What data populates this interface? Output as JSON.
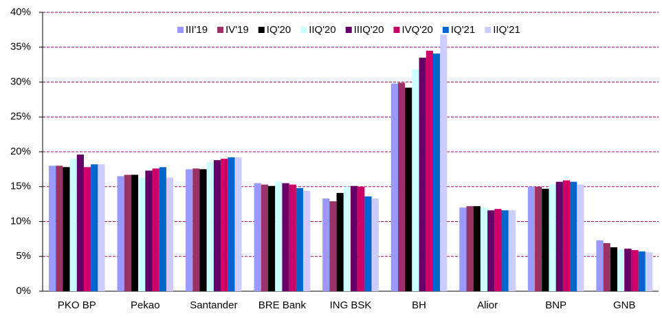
{
  "chart_data": {
    "type": "bar",
    "categories": [
      "PKO BP",
      "Pekao",
      "Santander",
      "BRE Bank",
      "ING BSK",
      "BH",
      "Alior",
      "BNP",
      "GNB"
    ],
    "series": [
      {
        "name": "III'19",
        "color": "#9999ff",
        "values": [
          18.0,
          16.5,
          17.5,
          15.5,
          13.3,
          29.8,
          12.0,
          15.0,
          7.3
        ]
      },
      {
        "name": "IV'19",
        "color": "#993366",
        "values": [
          18.0,
          16.7,
          17.6,
          15.3,
          12.9,
          29.9,
          12.2,
          15.0,
          6.9
        ]
      },
      {
        "name": "IQ'20",
        "color": "#000000",
        "values": [
          17.8,
          16.7,
          17.5,
          15.1,
          14.1,
          29.2,
          12.2,
          14.7,
          6.3
        ]
      },
      {
        "name": "IIQ'20",
        "color": "#ccffff",
        "values": [
          19.0,
          16.3,
          18.5,
          15.7,
          15.0,
          31.8,
          12.0,
          15.3,
          6.0
        ]
      },
      {
        "name": "IIIQ'20",
        "color": "#660066",
        "values": [
          19.6,
          17.3,
          18.8,
          15.5,
          15.1,
          33.5,
          11.6,
          15.7,
          6.1
        ]
      },
      {
        "name": "IVQ'20",
        "color": "#cc0066",
        "values": [
          17.8,
          17.6,
          19.0,
          15.3,
          15.0,
          34.5,
          11.8,
          15.9,
          5.9
        ]
      },
      {
        "name": "IQ'21",
        "color": "#0066cc",
        "values": [
          18.2,
          17.8,
          19.2,
          14.8,
          13.6,
          34.1,
          11.6,
          15.7,
          5.7
        ]
      },
      {
        "name": "IIQ'21",
        "color": "#ccccff",
        "values": [
          18.2,
          16.3,
          19.2,
          14.4,
          13.3,
          36.8,
          11.6,
          15.3,
          5.6
        ]
      }
    ],
    "ylim": [
      0,
      40
    ],
    "yticks": [
      {
        "value": 0,
        "label": "0%"
      },
      {
        "value": 5,
        "label": "5%"
      },
      {
        "value": 10,
        "label": "10%"
      },
      {
        "value": 15,
        "label": "15%"
      },
      {
        "value": 20,
        "label": "20%"
      },
      {
        "value": 25,
        "label": "25%"
      },
      {
        "value": 30,
        "label": "30%"
      },
      {
        "value": 35,
        "label": "35%"
      },
      {
        "value": 40,
        "label": "40%"
      }
    ],
    "grid": true
  }
}
